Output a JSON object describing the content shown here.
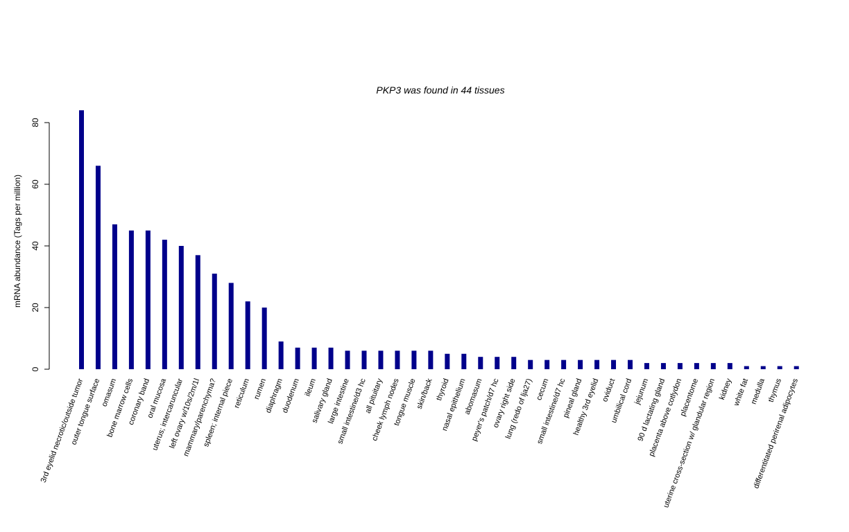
{
  "chart_data": {
    "type": "bar",
    "title": "PKP3  was found in  44  tissues",
    "ylabel": "mRNA abundance (Tags per million)",
    "xlabel": "",
    "ylim": [
      0,
      84
    ],
    "yticks": [
      0,
      20,
      40,
      60,
      80
    ],
    "bar_color": "#00008B",
    "grid": false,
    "categories": [
      "3rd eyelid necrotic/outside tumor",
      "outer tongue surface",
      "omasum",
      "bone marrow cells",
      "coronary band",
      "oral mucosa",
      "uterus; intercaruncular",
      "left ovary w/10s/2m/1l",
      "mammary/parenchyma?",
      "spleen; internal piece",
      "reticulum",
      "rumen",
      "diaphragm",
      "duodenum",
      "ileum",
      "salivary gland",
      "large intestine",
      "small intestine/d3 hc",
      "all pituitary",
      "cheek lymph nodes",
      "tongue muscle",
      "skin/back",
      "thyroid",
      "nasal epithelium",
      "abomasum",
      "peyer's patch/d7 hc",
      "ovary right side",
      "lung (redo of lja27)",
      "cecum",
      "small intestine/d7 hc",
      "pineal gland",
      "healthy 3rd eyelid",
      "oviduct",
      "umbilical cord",
      "jejunum",
      "90 d lactating gland",
      "placenta above cotlydon",
      "placentome",
      "uterine cross-section w/ glandular region",
      "kidney",
      "white fat",
      "medulla",
      "thymus",
      "differentitated perirenal adipocytes"
    ],
    "values": [
      84,
      66,
      47,
      45,
      45,
      42,
      40,
      37,
      31,
      28,
      22,
      20,
      9,
      7,
      7,
      7,
      6,
      6,
      6,
      6,
      6,
      6,
      5,
      5,
      4,
      4,
      4,
      3,
      3,
      3,
      3,
      3,
      3,
      3,
      2,
      2,
      2,
      2,
      2,
      2,
      1,
      1,
      1,
      1
    ]
  }
}
